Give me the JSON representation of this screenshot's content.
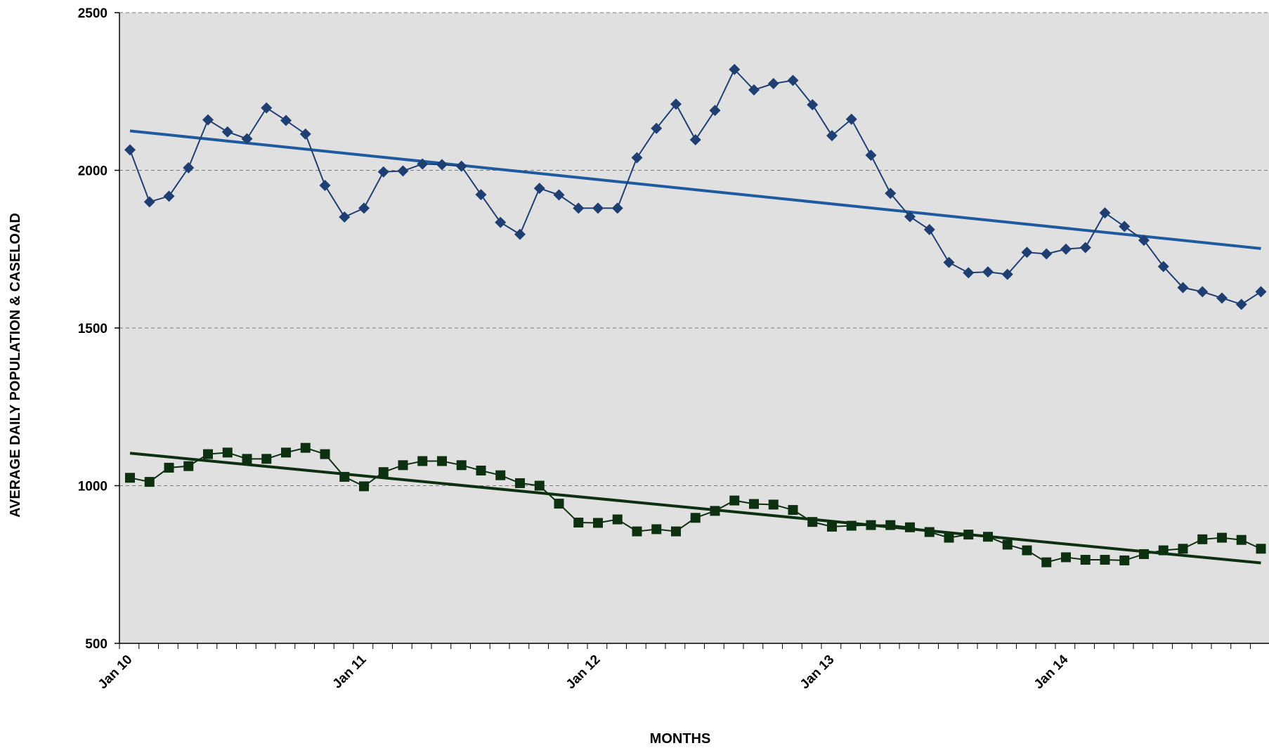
{
  "chart_data": {
    "type": "line",
    "title": "",
    "xlabel": "MONTHS",
    "ylabel": "AVERAGE DAILY POPULATION & CASELOAD",
    "ylim": [
      500,
      2500
    ],
    "yticks": [
      500,
      1000,
      1500,
      2000,
      2500
    ],
    "x_start": "Jan 10",
    "x_tick_labels": [
      {
        "label": "Jan 10",
        "month_index": 0
      },
      {
        "label": "Jan 11",
        "month_index": 12
      },
      {
        "label": "Jan 12",
        "month_index": 24
      },
      {
        "label": "Jan 13",
        "month_index": 36
      },
      {
        "label": "Jan 14",
        "month_index": 48
      }
    ],
    "grid": "horizontal dashed",
    "legend": "none",
    "series": [
      {
        "color": "#1f3f73",
        "marker": "diamond",
        "values": [
          2065,
          1900,
          1918,
          2008,
          2160,
          2122,
          2100,
          2198,
          2158,
          2115,
          1952,
          1852,
          1880,
          1995,
          1998,
          2020,
          2018,
          2013,
          1923,
          1835,
          1797,
          1943,
          1922,
          1880,
          1880,
          1880,
          2040,
          2133,
          2210,
          2097,
          2190,
          2320,
          2255,
          2275,
          2285,
          2208,
          2110,
          2162,
          2048,
          1927,
          1853,
          1812,
          1708,
          1675,
          1678,
          1670,
          1740,
          1735,
          1750,
          1755,
          1865,
          1822,
          1778,
          1695,
          1628,
          1615,
          1595,
          1575,
          1615
        ]
      },
      {
        "color": "#0d3010",
        "marker": "square",
        "values": [
          1025,
          1012,
          1057,
          1062,
          1100,
          1105,
          1085,
          1085,
          1105,
          1120,
          1100,
          1028,
          998,
          1043,
          1065,
          1078,
          1078,
          1065,
          1048,
          1033,
          1008,
          1000,
          943,
          883,
          882,
          893,
          855,
          862,
          855,
          898,
          920,
          953,
          942,
          940,
          923,
          885,
          870,
          873,
          875,
          875,
          868,
          853,
          835,
          845,
          838,
          813,
          795,
          757,
          773,
          765,
          765,
          763,
          783,
          795,
          800,
          830,
          835,
          828,
          800
        ]
      }
    ],
    "trendlines": [
      {
        "color": "#1f5aa0",
        "from": {
          "month_index": 0,
          "y": 2125
        },
        "to": {
          "month_index": 58,
          "y": 1752
        }
      },
      {
        "color": "#0d3010",
        "from": {
          "month_index": 0,
          "y": 1103
        },
        "to": {
          "month_index": 58,
          "y": 755
        }
      }
    ]
  }
}
